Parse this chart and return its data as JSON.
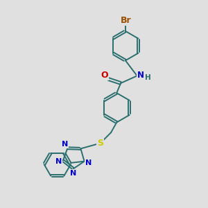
{
  "background_color": "#e0e0e0",
  "bond_color": "#2a6e6e",
  "bond_width": 1.4,
  "atom_colors": {
    "Br": "#9a4e00",
    "O": "#cc0000",
    "N": "#0000cc",
    "S": "#cccc00",
    "H": "#2a6e6e",
    "C": "#2a6e6e"
  },
  "font_size": 8.5,
  "fig_size": [
    3.0,
    3.0
  ],
  "dpi": 100
}
